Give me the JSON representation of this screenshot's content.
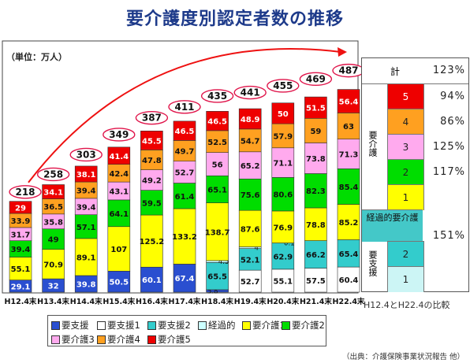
{
  "title": "要介護度別認定者数の推移",
  "unit_label": "（単位：万人）",
  "source": "（出典：介護保険事業状況報告 他）",
  "comparison_caption": "H12.4とH22.4の比較",
  "colors": {
    "要支援": "#2a4fd0",
    "要支援1": "#ffffff",
    "要支援2": "#33cccc",
    "経過的": "#ccffff",
    "要介護1": "#ffff00",
    "要介護2": "#00dd00",
    "要介護3": "#ffaaee",
    "要介護4": "#ffa020",
    "要介護5": "#ee0000",
    "curve": "#ee1111",
    "title": "#1d3a8a"
  },
  "legend": [
    {
      "label": "要支援",
      "key": "要支援"
    },
    {
      "label": "要支援1",
      "key": "要支援1"
    },
    {
      "label": "要支援2",
      "key": "要支援2"
    },
    {
      "label": "経過的",
      "key": "経過的"
    },
    {
      "label": "要介護1",
      "key": "要介護1"
    },
    {
      "label": "要介護2",
      "key": "要介護2"
    },
    {
      "label": "要介護3",
      "key": "要介護3"
    },
    {
      "label": "要介護4",
      "key": "要介護4"
    },
    {
      "label": "要介護5",
      "key": "要介護5"
    }
  ],
  "chart_data": {
    "type": "bar",
    "stacked": true,
    "categories": [
      "H12.4末",
      "H13.4末",
      "H14.4末",
      "H15.4末",
      "H16.4末",
      "H17.4末",
      "H18.4末",
      "H19.4末",
      "H20.4末",
      "H21.4末",
      "H22.4末"
    ],
    "ylim": [
      0,
      500
    ],
    "totals": [
      218,
      258,
      303,
      349,
      387,
      411,
      435,
      441,
      455,
      469,
      487
    ],
    "series": [
      {
        "name": "要支援",
        "values": [
          29.1,
          32,
          39.8,
          50.5,
          60.1,
          67.4,
          5.8,
          0,
          0,
          0,
          0
        ]
      },
      {
        "name": "要支援1",
        "values": [
          0,
          0,
          0,
          0,
          0,
          0,
          0,
          52.7,
          55.1,
          57.5,
          60.4
        ]
      },
      {
        "name": "要支援2",
        "values": [
          0,
          0,
          0,
          0,
          0,
          0,
          65.5,
          52.1,
          62.9,
          66.2,
          65.4
        ]
      },
      {
        "name": "経過的",
        "values": [
          0,
          0,
          0,
          0,
          0,
          0,
          4.5,
          4,
          0.1,
          0,
          0
        ]
      },
      {
        "name": "要介護1",
        "values": [
          55.1,
          70.9,
          89.1,
          107,
          125.2,
          133.2,
          138.7,
          87.6,
          76.9,
          78.8,
          85.2
        ]
      },
      {
        "name": "要介護2",
        "values": [
          39.4,
          49,
          57.1,
          64.1,
          59.5,
          61.4,
          65.1,
          75.6,
          80.6,
          82.3,
          85.4
        ]
      },
      {
        "name": "要介護3",
        "values": [
          31.7,
          35.8,
          39.4,
          43.1,
          49.2,
          52.7,
          56,
          65.2,
          71.1,
          73.8,
          71.3
        ]
      },
      {
        "name": "要介護4",
        "values": [
          33.9,
          36.5,
          39.4,
          42.4,
          47.8,
          49.7,
          52.5,
          54.7,
          57.9,
          59,
          63
        ]
      },
      {
        "name": "要介護5",
        "values": [
          29,
          34.1,
          38.1,
          41.4,
          45.5,
          46.5,
          46.5,
          48.9,
          50,
          51.5,
          56.4
        ]
      }
    ],
    "comparison": {
      "total_label": "計",
      "total_pct": "123%",
      "yokaigo_label": "要介護",
      "yoshien_label": "要支援",
      "keikateki_label": "経過的要介護",
      "rows": [
        {
          "level": "5",
          "pct": "94%"
        },
        {
          "level": "4",
          "pct": "86%"
        },
        {
          "level": "3",
          "pct": "125%"
        },
        {
          "level": "2",
          "pct": "117%"
        },
        {
          "level": "1",
          "pct": ""
        }
      ],
      "merged_pct": "151%",
      "shien_rows": [
        {
          "level": "2"
        },
        {
          "level": "1"
        }
      ]
    }
  }
}
